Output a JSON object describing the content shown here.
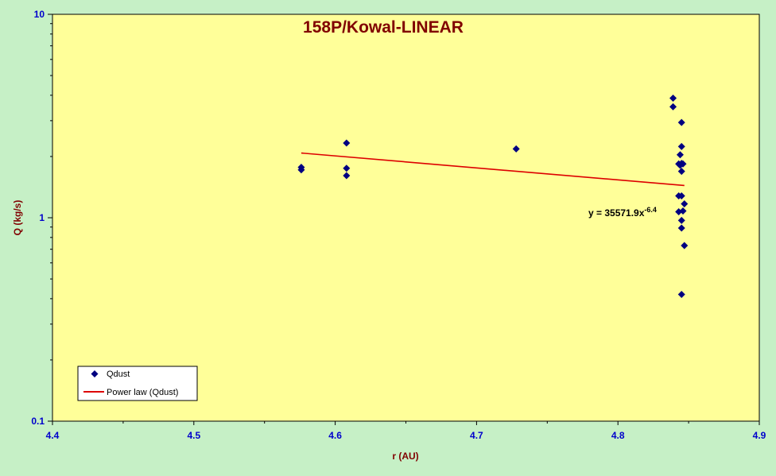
{
  "chart_data": {
    "type": "scatter",
    "title": "158P/Kowal-LINEAR",
    "xlabel": "r (AU)",
    "ylabel": "Q (kg/s)",
    "xlim": [
      4.4,
      4.9
    ],
    "ylim": [
      0.1,
      10
    ],
    "y_scale": "log",
    "x_ticks": [
      "4.4",
      "4.5",
      "4.6",
      "4.7",
      "4.8",
      "4.9"
    ],
    "y_ticks": [
      "0.1",
      "1",
      "10"
    ],
    "grid": false,
    "legend_position": "bottom-left",
    "colors": {
      "plot_background": "#ffff99",
      "outer_background": "#c6f0c6",
      "marker": "#000080",
      "fit_line": "#dd0000",
      "tick_labels": "#0000cc",
      "titles": "#800000"
    },
    "series": [
      {
        "name": "Qdust",
        "kind": "scatter",
        "x": [
          4.576,
          4.576,
          4.608,
          4.608,
          4.608,
          4.728,
          4.839,
          4.839,
          4.845,
          4.845,
          4.844,
          4.843,
          4.844,
          4.845,
          4.846,
          4.845,
          4.843,
          4.845,
          4.847,
          4.843,
          4.846,
          4.845,
          4.845,
          4.847,
          4.845
        ],
        "y": [
          1.77,
          1.72,
          2.33,
          1.75,
          1.61,
          2.18,
          3.87,
          3.51,
          2.94,
          2.24,
          2.04,
          1.84,
          1.81,
          1.85,
          1.84,
          1.69,
          1.28,
          1.28,
          1.17,
          1.07,
          1.08,
          0.97,
          0.89,
          0.73,
          0.42
        ]
      },
      {
        "name": "Power law (Qdust)",
        "kind": "line",
        "x": [
          4.576,
          4.847
        ],
        "y": [
          2.08,
          1.44
        ]
      }
    ],
    "annotations": {
      "equation_prefix": "y = 35571.9x",
      "equation_exponent": "-6.4"
    }
  }
}
